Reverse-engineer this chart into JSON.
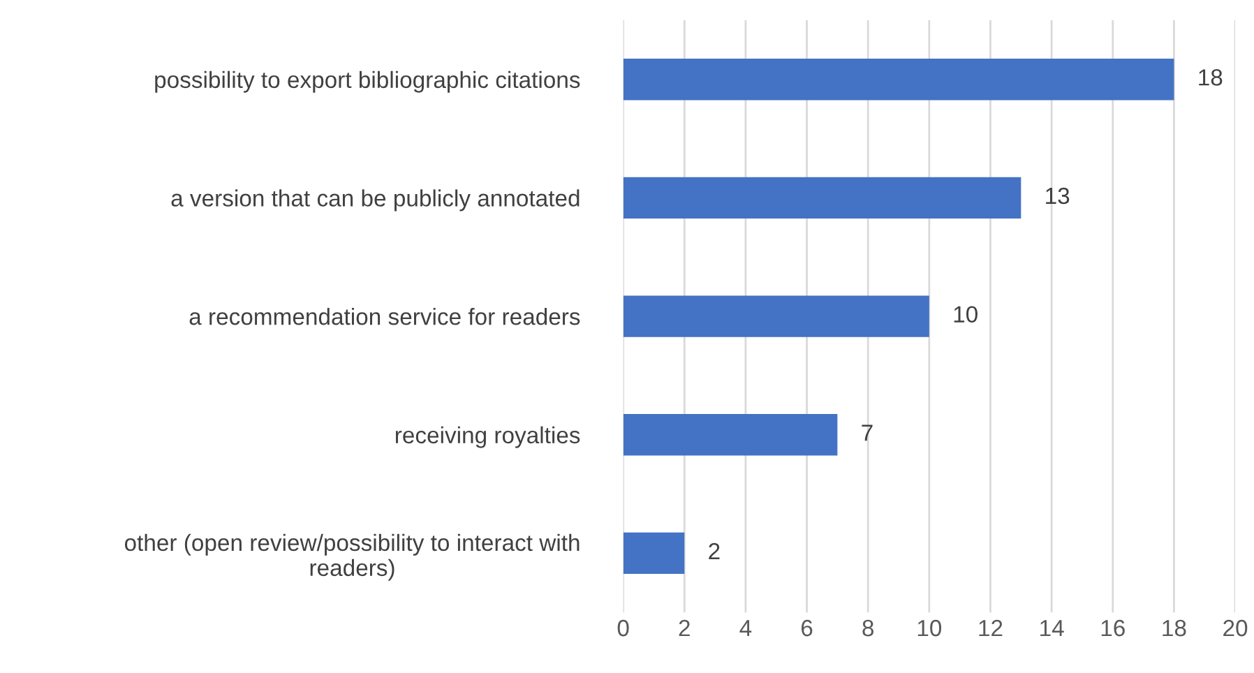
{
  "chart_data": {
    "type": "bar",
    "orientation": "horizontal",
    "categories": [
      "possibility to export bibliographic citations",
      "a version that can be publicly annotated",
      "a recommendation service for readers",
      "receiving royalties",
      "other (open review/possibility to interact with readers)"
    ],
    "values": [
      18,
      13,
      10,
      7,
      2
    ],
    "color": "#4472c4",
    "xlim": [
      0,
      20
    ],
    "xticks": [
      0,
      2,
      4,
      6,
      8,
      10,
      12,
      14,
      16,
      18,
      20
    ],
    "grid": "x",
    "data_labels": true
  }
}
